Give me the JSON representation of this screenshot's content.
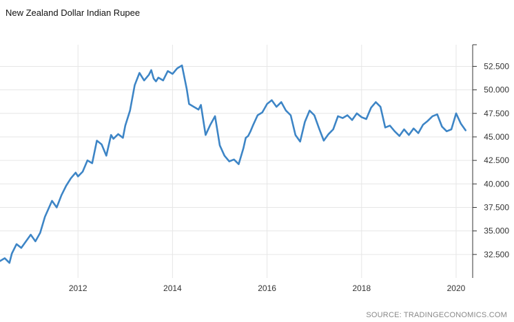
{
  "title": "New Zealand Dollar Indian Rupee",
  "source": "SOURCE: TRADINGECONOMICS.COM",
  "chart_data": {
    "type": "line",
    "title": "New Zealand Dollar Indian Rupee",
    "xlabel": "",
    "ylabel": "",
    "xlim": [
      2010.35,
      2020.35
    ],
    "ylim": [
      30.0,
      54.8
    ],
    "x_ticks": [
      2012,
      2014,
      2016,
      2018,
      2020
    ],
    "x_tick_labels": [
      "2012",
      "2014",
      "2016",
      "2018",
      "2020"
    ],
    "y_ticks": [
      32.5,
      35.0,
      37.5,
      40.0,
      42.5,
      45.0,
      47.5,
      50.0,
      52.5
    ],
    "y_tick_labels": [
      "32.500",
      "35.000",
      "37.500",
      "40.000",
      "42.500",
      "45.000",
      "47.500",
      "50.000",
      "52.500"
    ],
    "grid": true,
    "y_axis_side": "right",
    "line_color": "#3d85c6",
    "series": [
      {
        "x": [
          2010.35,
          2010.45,
          2010.55,
          2010.6,
          2010.7,
          2010.8,
          2010.9,
          2011.0,
          2011.1,
          2011.2,
          2011.3,
          2011.45,
          2011.55,
          2011.65,
          2011.75,
          2011.85,
          2011.95,
          2012.0,
          2012.1,
          2012.2,
          2012.3,
          2012.4,
          2012.5,
          2012.6,
          2012.7,
          2012.75,
          2012.85,
          2012.95,
          2013.0,
          2013.1,
          2013.2,
          2013.3,
          2013.4,
          2013.5,
          2013.55,
          2013.6,
          2013.65,
          2013.7,
          2013.8,
          2013.9,
          2014.0,
          2014.1,
          2014.2,
          2014.3,
          2014.35,
          2014.45,
          2014.55,
          2014.6,
          2014.7,
          2014.8,
          2014.9,
          2015.0,
          2015.1,
          2015.2,
          2015.3,
          2015.4,
          2015.5,
          2015.55,
          2015.6,
          2015.65,
          2015.7,
          2015.8,
          2015.9,
          2016.0,
          2016.1,
          2016.2,
          2016.3,
          2016.4,
          2016.5,
          2016.6,
          2016.7,
          2016.8,
          2016.9,
          2017.0,
          2017.1,
          2017.2,
          2017.3,
          2017.4,
          2017.5,
          2017.6,
          2017.7,
          2017.8,
          2017.9,
          2018.0,
          2018.1,
          2018.2,
          2018.3,
          2018.4,
          2018.5,
          2018.6,
          2018.7,
          2018.8,
          2018.9,
          2019.0,
          2019.1,
          2019.2,
          2019.3,
          2019.4,
          2019.5,
          2019.6,
          2019.7,
          2019.8,
          2019.9,
          2020.0,
          2020.1,
          2020.2
        ],
        "values": [
          31.8,
          32.1,
          31.6,
          32.6,
          33.6,
          33.2,
          33.9,
          34.6,
          33.9,
          34.8,
          36.5,
          38.2,
          37.5,
          38.8,
          39.8,
          40.6,
          41.2,
          40.8,
          41.3,
          42.5,
          42.2,
          44.6,
          44.2,
          43.0,
          45.2,
          44.8,
          45.3,
          44.9,
          46.2,
          47.8,
          50.5,
          51.8,
          51.0,
          51.6,
          52.1,
          51.2,
          50.9,
          51.3,
          51.0,
          52.0,
          51.7,
          52.3,
          52.6,
          50.1,
          48.5,
          48.2,
          47.9,
          48.4,
          45.2,
          46.3,
          47.2,
          44.1,
          43.0,
          42.4,
          42.6,
          42.1,
          43.8,
          44.9,
          45.1,
          45.6,
          46.2,
          47.3,
          47.6,
          48.5,
          48.9,
          48.2,
          48.7,
          47.8,
          47.3,
          45.2,
          44.5,
          46.6,
          47.8,
          47.3,
          45.9,
          44.6,
          45.3,
          45.8,
          47.2,
          47.0,
          47.3,
          46.8,
          47.5,
          47.1,
          46.9,
          48.1,
          48.7,
          48.2,
          46.0,
          46.2,
          45.6,
          45.1,
          45.8,
          45.2,
          45.9,
          45.4,
          46.3,
          46.7,
          47.2,
          47.4,
          46.1,
          45.6,
          45.8,
          47.5,
          46.4,
          45.7
        ]
      }
    ]
  }
}
